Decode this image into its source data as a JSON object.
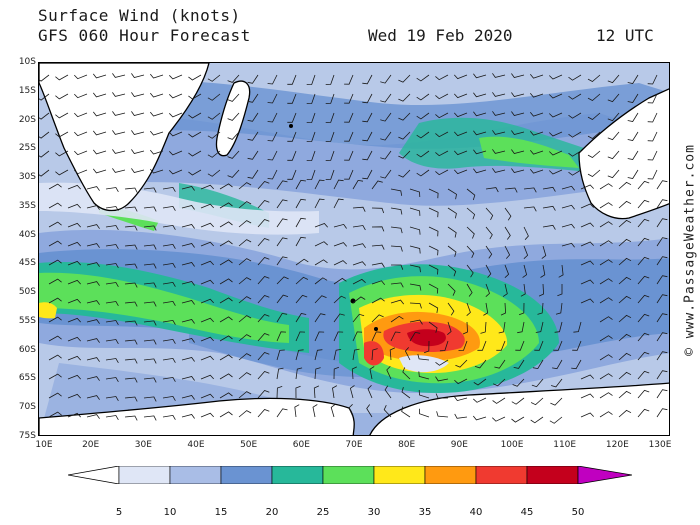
{
  "header": {
    "title": "Surface Wind (knots)",
    "subtitle": "GFS 060 Hour Forecast",
    "date": "Wed 19 Feb 2020",
    "time": "12 UTC"
  },
  "credit": "© www.PassageWeather.com",
  "axes": {
    "latitudes": [
      "10S",
      "15S",
      "20S",
      "25S",
      "30S",
      "35S",
      "40S",
      "45S",
      "50S",
      "55S",
      "60S",
      "65S",
      "70S",
      "75S"
    ],
    "longitudes": [
      "10E",
      "20E",
      "30E",
      "40E",
      "50E",
      "60E",
      "70E",
      "80E",
      "90E",
      "100E",
      "110E",
      "120E",
      "130E"
    ]
  },
  "legend": {
    "labels": [
      "5",
      "10",
      "15",
      "20",
      "25",
      "30",
      "35",
      "40",
      "45",
      "50"
    ],
    "colors": [
      "#ffffff",
      "#dfe6f6",
      "#a9bde6",
      "#6a93d2",
      "#27b89a",
      "#5ce05a",
      "#ffe81a",
      "#ff9a10",
      "#f03a30",
      "#c4001c",
      "#c000c0"
    ]
  },
  "colors": {
    "land": "#ffffff",
    "ocean_base": "#b8c9e8",
    "coast": "#000000"
  }
}
